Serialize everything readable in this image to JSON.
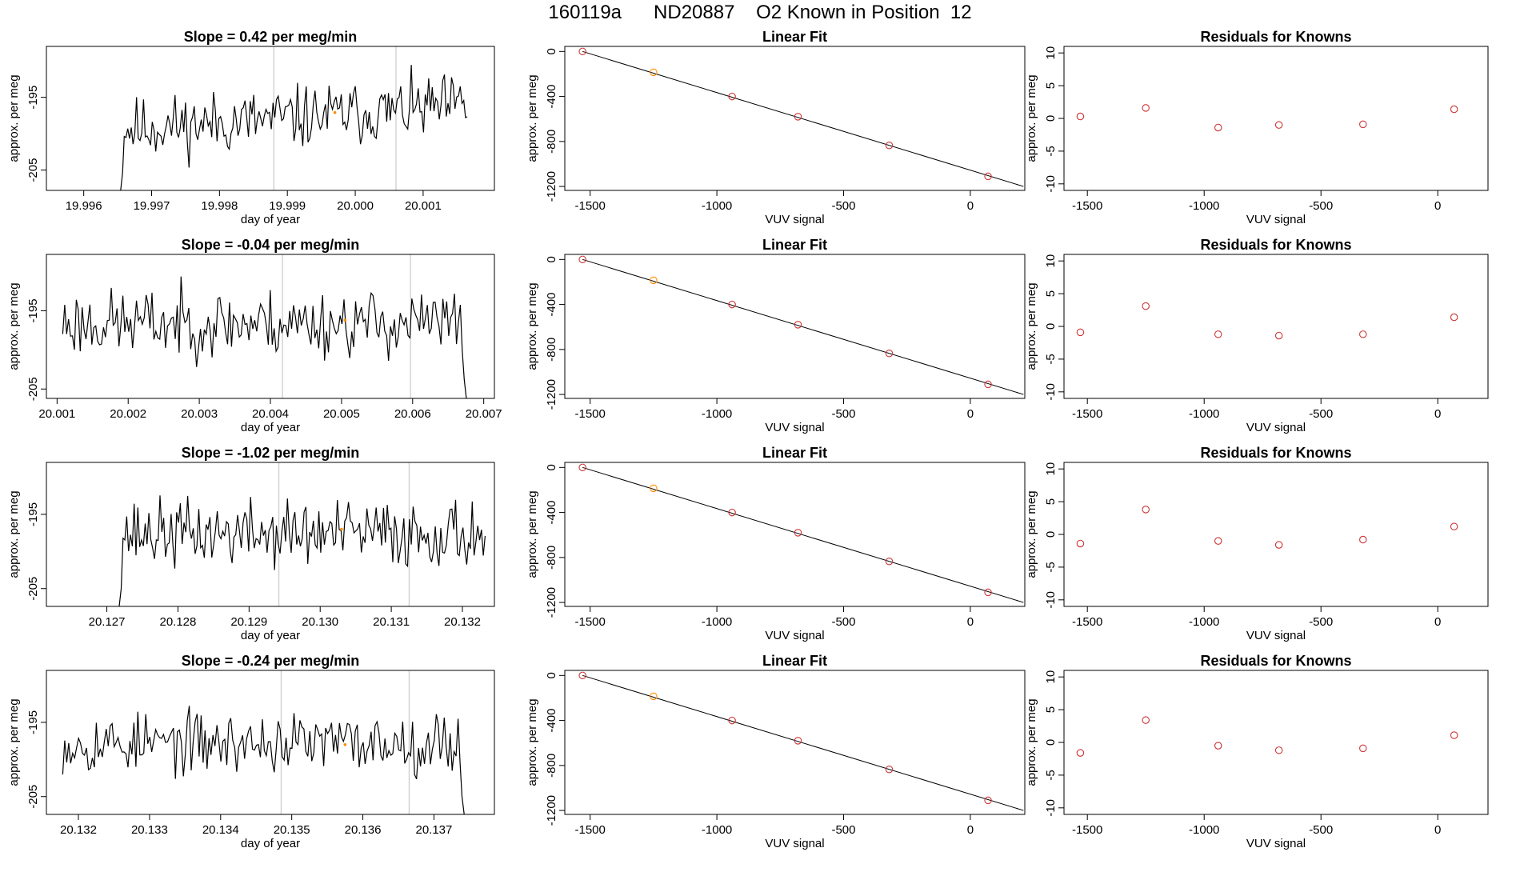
{
  "figure": {
    "title": "160119a      ND20887    O2 Known in Position  12"
  },
  "colors": {
    "trace": "#000000",
    "fit_line": "#000000",
    "divider": "#bfbfbf",
    "known_point": "#cd3333",
    "highlight_point": "#ff8c00",
    "frame": "#000000"
  },
  "chart_data": [
    {
      "type": "line",
      "panel": "timeseries",
      "title": "Slope =  0.42  per meg/min",
      "xlabel": "day of year",
      "ylabel": "approx. per meg",
      "xlim": [
        19.99545,
        20.00205
      ],
      "ylim": [
        -207.8,
        -188.0
      ],
      "xticks": [
        19.996,
        19.997,
        19.998,
        19.999,
        20.0,
        20.001
      ],
      "xtick_labels": [
        "19.996",
        "19.997",
        "19.998",
        "19.999",
        "20.000",
        "20.001"
      ],
      "yticks": [
        -205,
        -195
      ],
      "ytick_labels": [
        "-205",
        "-195"
      ],
      "trace_start": 19.99652,
      "trace_end": 20.00165,
      "trace_base": -197.8,
      "trace_drift": 3.3,
      "trace_noise": 3.3,
      "trace_points": 200,
      "trace_seed": 11,
      "dropout_start": true,
      "dropout_end": false,
      "vlines": [
        19.9988,
        20.0006
      ],
      "highlight": {
        "x": 19.9997,
        "y": -197.1
      }
    },
    {
      "type": "scatter",
      "panel": "fit",
      "title": "Linear Fit",
      "xlabel": "VUV signal",
      "ylabel": "approx. per meg",
      "xlim": [
        -1600,
        215
      ],
      "ylim": [
        -1235,
        45
      ],
      "xticks": [
        -1500,
        -1000,
        -500,
        0
      ],
      "xtick_labels": [
        "-1500",
        "-1000",
        "-500",
        "0"
      ],
      "yticks": [
        0,
        -400,
        -800,
        -1200
      ],
      "ytick_labels": [
        "0",
        "-400",
        "-800",
        "-1200"
      ],
      "x": [
        -1530,
        -1250,
        -940,
        -680,
        -320,
        70
      ],
      "y": [
        0,
        -185,
        -400,
        -580,
        -835,
        -1110
      ],
      "highlight_index": 1,
      "fit_x": [
        -1530,
        210
      ],
      "fit_y": [
        0,
        -1200
      ]
    },
    {
      "type": "scatter",
      "panel": "residuals",
      "title": "Residuals for Knowns",
      "xlabel": "VUV signal",
      "ylabel": "approx. per meg",
      "xlim": [
        -1600,
        215
      ],
      "ylim": [
        -11,
        11
      ],
      "xticks": [
        -1500,
        -1000,
        -500,
        0
      ],
      "xtick_labels": [
        "-1500",
        "-1000",
        "-500",
        "0"
      ],
      "yticks": [
        10,
        5,
        0,
        -5,
        -10
      ],
      "ytick_labels": [
        "10",
        "5",
        "0",
        "-5",
        "-10"
      ],
      "x": [
        -1530,
        -1250,
        -940,
        -680,
        -320,
        70
      ],
      "y": [
        0.3,
        1.6,
        -1.4,
        -1.0,
        -0.9,
        1.4
      ]
    },
    {
      "type": "line",
      "panel": "timeseries",
      "title": "Slope =  -0.04  per meg/min",
      "xlabel": "day of year",
      "ylabel": "approx. per meg",
      "xlim": [
        20.00085,
        20.00715
      ],
      "ylim": [
        -206.2,
        -187.8
      ],
      "xticks": [
        20.001,
        20.002,
        20.003,
        20.004,
        20.005,
        20.006,
        20.007
      ],
      "xtick_labels": [
        "20.001",
        "20.002",
        "20.003",
        "20.004",
        "20.005",
        "20.006",
        "20.007"
      ],
      "yticks": [
        -205,
        -195
      ],
      "ytick_labels": [
        "-205",
        "-195"
      ],
      "trace_start": 20.00108,
      "trace_end": 20.00678,
      "trace_base": -196.6,
      "trace_drift": 0.0,
      "trace_noise": 3.3,
      "trace_points": 210,
      "trace_seed": 23,
      "dropout_start": false,
      "dropout_end": true,
      "vlines": [
        20.00417,
        20.00597
      ],
      "highlight": {
        "x": 20.00505,
        "y": -196.2
      }
    },
    {
      "type": "scatter",
      "panel": "fit",
      "title": "Linear Fit",
      "xlabel": "VUV signal",
      "ylabel": "approx. per meg",
      "xlim": [
        -1600,
        215
      ],
      "ylim": [
        -1235,
        45
      ],
      "xticks": [
        -1500,
        -1000,
        -500,
        0
      ],
      "xtick_labels": [
        "-1500",
        "-1000",
        "-500",
        "0"
      ],
      "yticks": [
        0,
        -400,
        -800,
        -1200
      ],
      "ytick_labels": [
        "0",
        "-400",
        "-800",
        "-1200"
      ],
      "x": [
        -1530,
        -1250,
        -940,
        -680,
        -320,
        70
      ],
      "y": [
        0,
        -185,
        -400,
        -580,
        -835,
        -1110
      ],
      "highlight_index": 1,
      "fit_x": [
        -1530,
        210
      ],
      "fit_y": [
        0,
        -1200
      ]
    },
    {
      "type": "scatter",
      "panel": "residuals",
      "title": "Residuals for Knowns",
      "xlabel": "VUV signal",
      "ylabel": "approx. per meg",
      "xlim": [
        -1600,
        215
      ],
      "ylim": [
        -11,
        11
      ],
      "xticks": [
        -1500,
        -1000,
        -500,
        0
      ],
      "xtick_labels": [
        "-1500",
        "-1000",
        "-500",
        "0"
      ],
      "yticks": [
        10,
        5,
        0,
        -5,
        -10
      ],
      "ytick_labels": [
        "10",
        "5",
        "0",
        "-5",
        "-10"
      ],
      "x": [
        -1530,
        -1250,
        -940,
        -680,
        -320,
        70
      ],
      "y": [
        -0.9,
        3.1,
        -1.2,
        -1.4,
        -1.2,
        1.4
      ]
    },
    {
      "type": "line",
      "panel": "timeseries",
      "title": "Slope =  -1.02  per meg/min",
      "xlabel": "day of year",
      "ylabel": "approx. per meg",
      "xlim": [
        20.12615,
        20.13245
      ],
      "ylim": [
        -207.4,
        -188.0
      ],
      "xticks": [
        20.127,
        20.128,
        20.129,
        20.13,
        20.131,
        20.132
      ],
      "xtick_labels": [
        "20.127",
        "20.128",
        "20.129",
        "20.130",
        "20.131",
        "20.132"
      ],
      "yticks": [
        -205,
        -195
      ],
      "ytick_labels": [
        "-205",
        "-195"
      ],
      "trace_start": 20.12715,
      "trace_end": 20.13232,
      "trace_base": -197.6,
      "trace_drift": 0.0,
      "trace_noise": 3.5,
      "trace_points": 200,
      "trace_seed": 37,
      "dropout_start": true,
      "dropout_end": false,
      "vlines": [
        20.12942,
        20.13125
      ],
      "highlight": {
        "x": 20.1303,
        "y": -197.0
      }
    },
    {
      "type": "scatter",
      "panel": "fit",
      "title": "Linear Fit",
      "xlabel": "VUV signal",
      "ylabel": "approx. per meg",
      "xlim": [
        -1600,
        215
      ],
      "ylim": [
        -1235,
        45
      ],
      "xticks": [
        -1500,
        -1000,
        -500,
        0
      ],
      "xtick_labels": [
        "-1500",
        "-1000",
        "-500",
        "0"
      ],
      "yticks": [
        0,
        -400,
        -800,
        -1200
      ],
      "ytick_labels": [
        "0",
        "-400",
        "-800",
        "-1200"
      ],
      "x": [
        -1530,
        -1250,
        -940,
        -680,
        -320,
        70
      ],
      "y": [
        0,
        -185,
        -400,
        -580,
        -835,
        -1110
      ],
      "highlight_index": 1,
      "fit_x": [
        -1530,
        210
      ],
      "fit_y": [
        0,
        -1200
      ]
    },
    {
      "type": "scatter",
      "panel": "residuals",
      "title": "Residuals for Knowns",
      "xlabel": "VUV signal",
      "ylabel": "approx. per meg",
      "xlim": [
        -1600,
        215
      ],
      "ylim": [
        -11,
        11
      ],
      "xticks": [
        -1500,
        -1000,
        -500,
        0
      ],
      "xtick_labels": [
        "-1500",
        "-1000",
        "-500",
        "0"
      ],
      "yticks": [
        10,
        5,
        0,
        -5,
        -10
      ],
      "ytick_labels": [
        "10",
        "5",
        "0",
        "-5",
        "-10"
      ],
      "x": [
        -1530,
        -1250,
        -940,
        -680,
        -320,
        70
      ],
      "y": [
        -1.4,
        3.8,
        -1.0,
        -1.6,
        -0.8,
        1.2
      ]
    },
    {
      "type": "line",
      "panel": "timeseries",
      "title": "Slope =  -0.24  per meg/min",
      "xlabel": "day of year",
      "ylabel": "approx. per meg",
      "xlim": [
        20.13155,
        20.13785
      ],
      "ylim": [
        -207.4,
        -188.0
      ],
      "xticks": [
        20.132,
        20.133,
        20.134,
        20.135,
        20.136,
        20.137
      ],
      "xtick_labels": [
        "20.132",
        "20.133",
        "20.134",
        "20.135",
        "20.136",
        "20.137"
      ],
      "yticks": [
        -205,
        -195
      ],
      "ytick_labels": [
        "-205",
        "-195"
      ],
      "trace_start": 20.13178,
      "trace_end": 20.13745,
      "trace_base": -197.8,
      "trace_drift": 0.0,
      "trace_noise": 3.1,
      "trace_points": 205,
      "trace_seed": 53,
      "dropout_start": false,
      "dropout_end": true,
      "vlines": [
        20.13485,
        20.13665
      ],
      "highlight": {
        "x": 20.13575,
        "y": -198.0
      }
    },
    {
      "type": "scatter",
      "panel": "fit",
      "title": "Linear Fit",
      "xlabel": "VUV signal",
      "ylabel": "approx. per meg",
      "xlim": [
        -1600,
        215
      ],
      "ylim": [
        -1235,
        45
      ],
      "xticks": [
        -1500,
        -1000,
        -500,
        0
      ],
      "xtick_labels": [
        "-1500",
        "-1000",
        "-500",
        "0"
      ],
      "yticks": [
        0,
        -400,
        -800,
        -1200
      ],
      "ytick_labels": [
        "0",
        "-400",
        "-800",
        "-1200"
      ],
      "x": [
        -1530,
        -1250,
        -940,
        -680,
        -320,
        70
      ],
      "y": [
        0,
        -185,
        -400,
        -580,
        -835,
        -1110
      ],
      "highlight_index": 1,
      "fit_x": [
        -1530,
        210
      ],
      "fit_y": [
        0,
        -1200
      ]
    },
    {
      "type": "scatter",
      "panel": "residuals",
      "title": "Residuals for Knowns",
      "xlabel": "VUV signal",
      "ylabel": "approx. per meg",
      "xlim": [
        -1600,
        215
      ],
      "ylim": [
        -11,
        11
      ],
      "xticks": [
        -1500,
        -1000,
        -500,
        0
      ],
      "xtick_labels": [
        "-1500",
        "-1000",
        "-500",
        "0"
      ],
      "yticks": [
        10,
        5,
        0,
        -5,
        -10
      ],
      "ytick_labels": [
        "10",
        "5",
        "0",
        "-5",
        "-10"
      ],
      "x": [
        -1530,
        -1250,
        -940,
        -680,
        -320,
        70
      ],
      "y": [
        -1.6,
        3.4,
        -0.5,
        -1.2,
        -0.9,
        1.1
      ]
    }
  ]
}
